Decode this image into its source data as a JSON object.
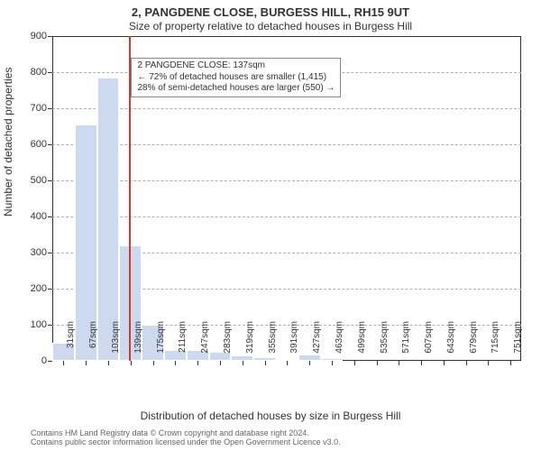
{
  "title_main": "2, PANGDENE CLOSE, BURGESS HILL, RH15 9UT",
  "title_sub": "Size of property relative to detached houses in Burgess Hill",
  "title_fontsize": 13,
  "subtitle_fontsize": 12,
  "ylabel": "Number of detached properties",
  "xlabel": "Distribution of detached houses by size in Burgess Hill",
  "axis_label_fontsize": 12,
  "chart": {
    "type": "histogram",
    "background_color": "#ffffff",
    "border_color": "#333333",
    "grid_color": "#b0b0b0",
    "grid_dash": true,
    "bar_fill": "#cdd9ef",
    "bar_border": "#ffffff",
    "marker_color": "#d43a2a",
    "marker_x": 137,
    "xlim": [
      13,
      768
    ],
    "ylim": [
      0,
      900
    ],
    "ytick_step": 100,
    "xtick_step": 36,
    "xtick_start": 31,
    "xtick_unit": "sqm",
    "xtick_fontsize": 10,
    "ytick_fontsize": 11,
    "bar_width_value": 36,
    "bars": [
      {
        "x0": 13,
        "count": 50
      },
      {
        "x0": 49,
        "count": 655
      },
      {
        "x0": 85,
        "count": 785
      },
      {
        "x0": 121,
        "count": 320
      },
      {
        "x0": 157,
        "count": 100
      },
      {
        "x0": 193,
        "count": 30
      },
      {
        "x0": 229,
        "count": 30
      },
      {
        "x0": 265,
        "count": 25
      },
      {
        "x0": 301,
        "count": 15
      },
      {
        "x0": 337,
        "count": 10
      },
      {
        "x0": 373,
        "count": 2
      },
      {
        "x0": 409,
        "count": 18
      },
      {
        "x0": 445,
        "count": 8
      },
      {
        "x0": 481,
        "count": 0
      },
      {
        "x0": 517,
        "count": 0
      },
      {
        "x0": 553,
        "count": 0
      },
      {
        "x0": 589,
        "count": 0
      },
      {
        "x0": 625,
        "count": 0
      },
      {
        "x0": 661,
        "count": 0
      },
      {
        "x0": 697,
        "count": 0
      },
      {
        "x0": 733,
        "count": 0
      }
    ]
  },
  "annotation": {
    "lines": [
      "2 PANGDENE CLOSE: 137sqm",
      "← 72% of detached houses are smaller (1,415)",
      "28% of semi-detached houses are larger (550) →"
    ],
    "border_color": "#888888",
    "background": "#ffffff",
    "fontsize": 10,
    "pos_value": {
      "x": 140,
      "ytop": 840
    }
  },
  "credits": {
    "line1": "Contains HM Land Registry data © Crown copyright and database right 2024.",
    "line2": "Contains public sector information licensed under the Open Government Licence v3.0.",
    "color": "#666666",
    "fontsize": 9
  }
}
